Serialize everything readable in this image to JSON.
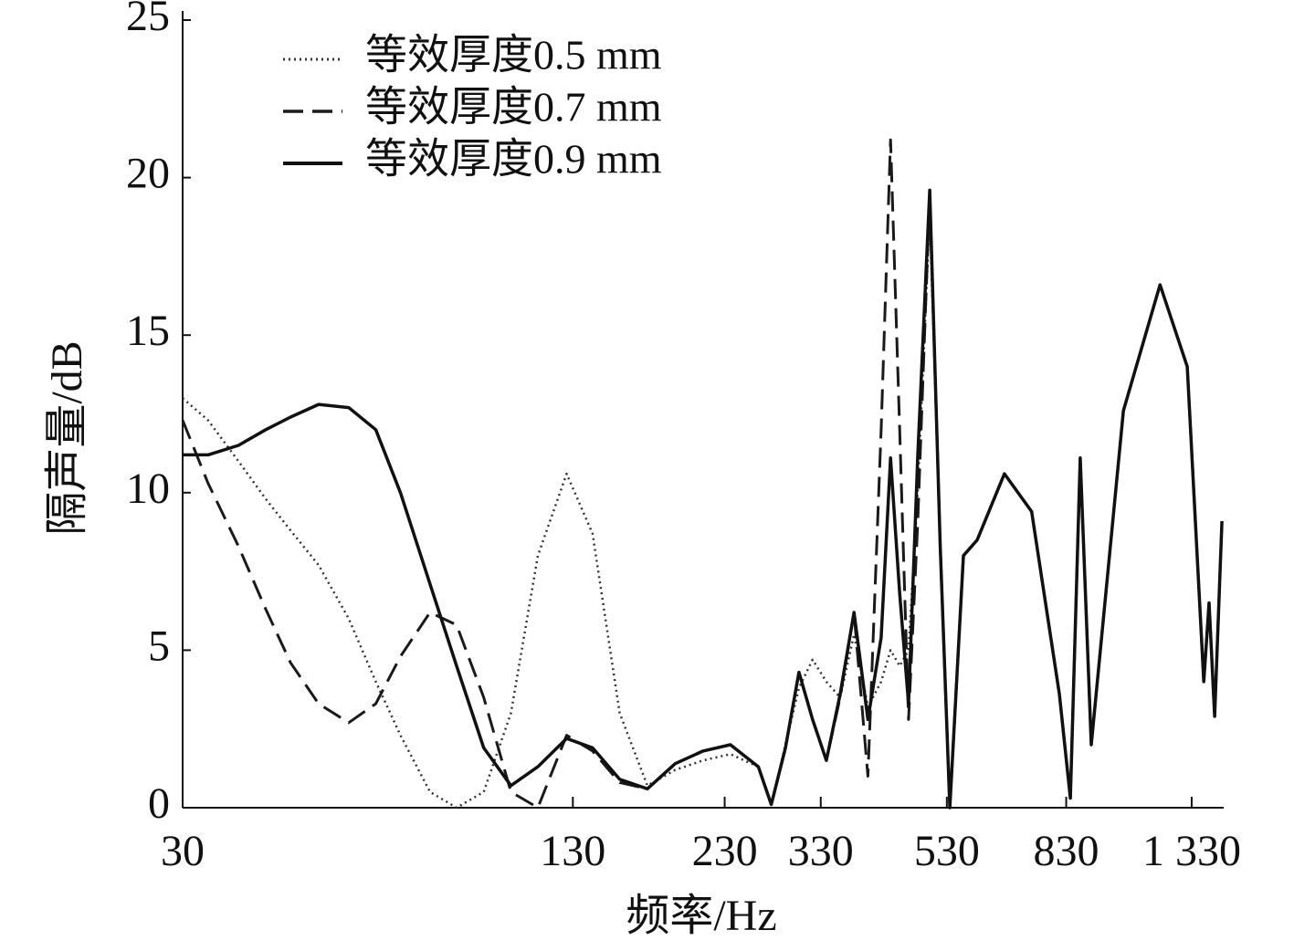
{
  "chart_data": {
    "type": "line",
    "x_label": "频率/Hz",
    "y_label": "隔声量/dB",
    "xscale": "log",
    "xlim": [
      30,
      1500
    ],
    "ylim": [
      0,
      25
    ],
    "xticks": [
      30,
      130,
      230,
      330,
      530,
      830,
      {
        "value": 1330,
        "label": "1 330"
      }
    ],
    "yticks": [
      0,
      5,
      10,
      15,
      20,
      25
    ],
    "legend": "upper-left",
    "x": [
      30,
      33,
      37,
      41,
      45,
      50,
      56,
      62,
      68,
      76,
      84,
      93,
      103,
      114,
      127,
      140,
      155,
      172,
      191,
      212,
      235,
      261,
      274,
      289,
      304,
      320,
      337,
      355,
      374,
      394,
      414,
      429,
      444,
      459,
      475,
      497,
      517,
      536,
      564,
      594,
      658,
      729,
      809,
      843,
      875,
      912,
      1029,
      1181,
      1308,
      1392,
      1420,
      1450,
      1490
    ],
    "series": [
      {
        "name": "等效厚度0.5 mm",
        "color": "#333333",
        "style": "dotted",
        "values": [
          13.0,
          12.3,
          11.0,
          9.8,
          8.8,
          7.7,
          6.0,
          4.0,
          2.3,
          0.5,
          0,
          0.5,
          3.0,
          8.0,
          10.6,
          8.7,
          3.0,
          0.7,
          1.2,
          1.5,
          1.7,
          1.3,
          0.1,
          2.0,
          3.8,
          4.7,
          4.0,
          3.5,
          5.5,
          3.2,
          4.0,
          5.0,
          4.5,
          5.0,
          10.0,
          18.8,
          8.3,
          0,
          8.0,
          8.5,
          10.6,
          9.4,
          3.6,
          0.3,
          11.1,
          2.0,
          12.6,
          16.6,
          14.0,
          4.0,
          6.5,
          2.9,
          9.1
        ]
      },
      {
        "name": "等效厚度0.7 mm",
        "color": "#1a1a1a",
        "style": "dashed",
        "values": [
          12.3,
          10.3,
          8.3,
          6.3,
          4.6,
          3.3,
          2.7,
          3.3,
          4.8,
          6.2,
          5.8,
          3.5,
          0.5,
          0,
          2.3,
          1.8,
          0.8,
          0.6,
          1.4,
          1.8,
          2.0,
          1.3,
          0.1,
          1.9,
          4.3,
          2.8,
          1.5,
          3.5,
          6.2,
          1.0,
          12.0,
          21.2,
          12.0,
          2.8,
          9.0,
          19.5,
          8.3,
          0,
          8.0,
          8.5,
          10.6,
          9.4,
          3.6,
          0.3,
          11.1,
          2.0,
          12.6,
          16.6,
          14.0,
          4.0,
          6.5,
          2.9,
          9.1
        ]
      },
      {
        "name": "等效厚度0.9 mm",
        "color": "#111111",
        "style": "solid",
        "values": [
          11.2,
          11.2,
          11.5,
          12.0,
          12.4,
          12.8,
          12.7,
          12.0,
          10.0,
          7.1,
          4.5,
          1.9,
          0.7,
          1.3,
          2.2,
          1.9,
          0.9,
          0.6,
          1.4,
          1.8,
          2.0,
          1.3,
          0.1,
          1.9,
          4.3,
          2.8,
          1.5,
          3.6,
          6.2,
          2.8,
          5.4,
          11.1,
          6.8,
          3.3,
          11.1,
          19.6,
          8.3,
          0,
          8.0,
          8.5,
          10.6,
          9.4,
          3.6,
          0.3,
          11.1,
          2.0,
          12.6,
          16.6,
          14.0,
          4.0,
          6.5,
          2.9,
          9.1
        ]
      }
    ]
  }
}
